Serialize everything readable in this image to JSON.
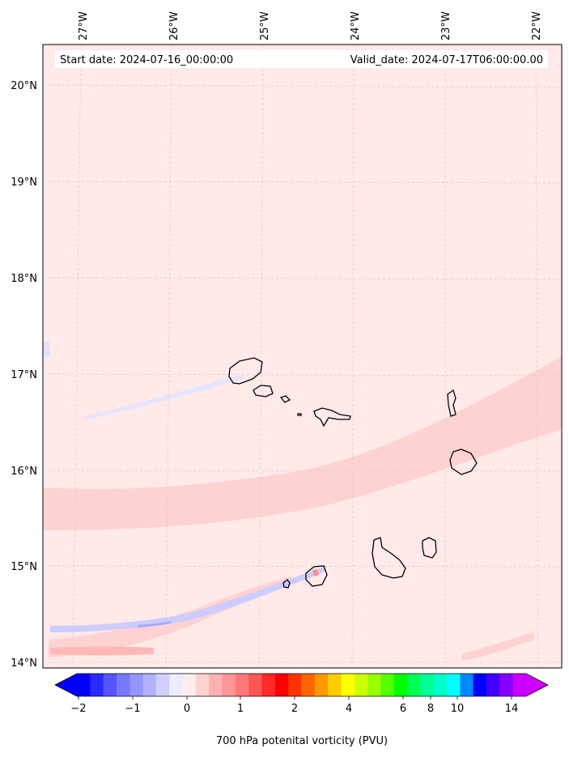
{
  "header": {
    "start_date": "Start date: 2024-07-16_00:00:00",
    "valid_date": "Valid_date: 2024-07-17T06:00:00.00"
  },
  "lon_labels": [
    "27°W",
    "26°W",
    "25°W",
    "24°W",
    "23°W",
    "22°W"
  ],
  "lat_labels": [
    "20°N",
    "19°N",
    "18°N",
    "17°N",
    "16°N",
    "15°N",
    "14°N"
  ],
  "colorbar": {
    "title": "700 hPa potenital vorticity (PVU)",
    "tick_labels": [
      "−2",
      "−1",
      "0",
      "1",
      "2",
      "4",
      "6",
      "8",
      "10",
      "14"
    ],
    "colors": [
      "#0000ff",
      "#2a2aff",
      "#5555ff",
      "#7878ff",
      "#9595ff",
      "#b1b1ff",
      "#d0d0ff",
      "#ececff",
      "#ffecec",
      "#ffd0d0",
      "#ffb1b1",
      "#ff9595",
      "#ff7878",
      "#ff5555",
      "#ff2a2a",
      "#ff0000",
      "#ff3300",
      "#ff6600",
      "#ff9900",
      "#ffcc00",
      "#ffff00",
      "#ccff00",
      "#99ff00",
      "#55ff00",
      "#00ff00",
      "#00ff55",
      "#00ff99",
      "#00ffcc",
      "#00ffff",
      "#0088ff",
      "#0000ff",
      "#4400ff",
      "#8800ff",
      "#cc00ff"
    ],
    "under_color": "#0000ff",
    "over_color": "#d000ff"
  },
  "colors": {
    "background_field": "#ffe9e9",
    "band_field": "#ffd2d2",
    "blue_streak": "#d6d6ff",
    "coastline": "#000000"
  }
}
